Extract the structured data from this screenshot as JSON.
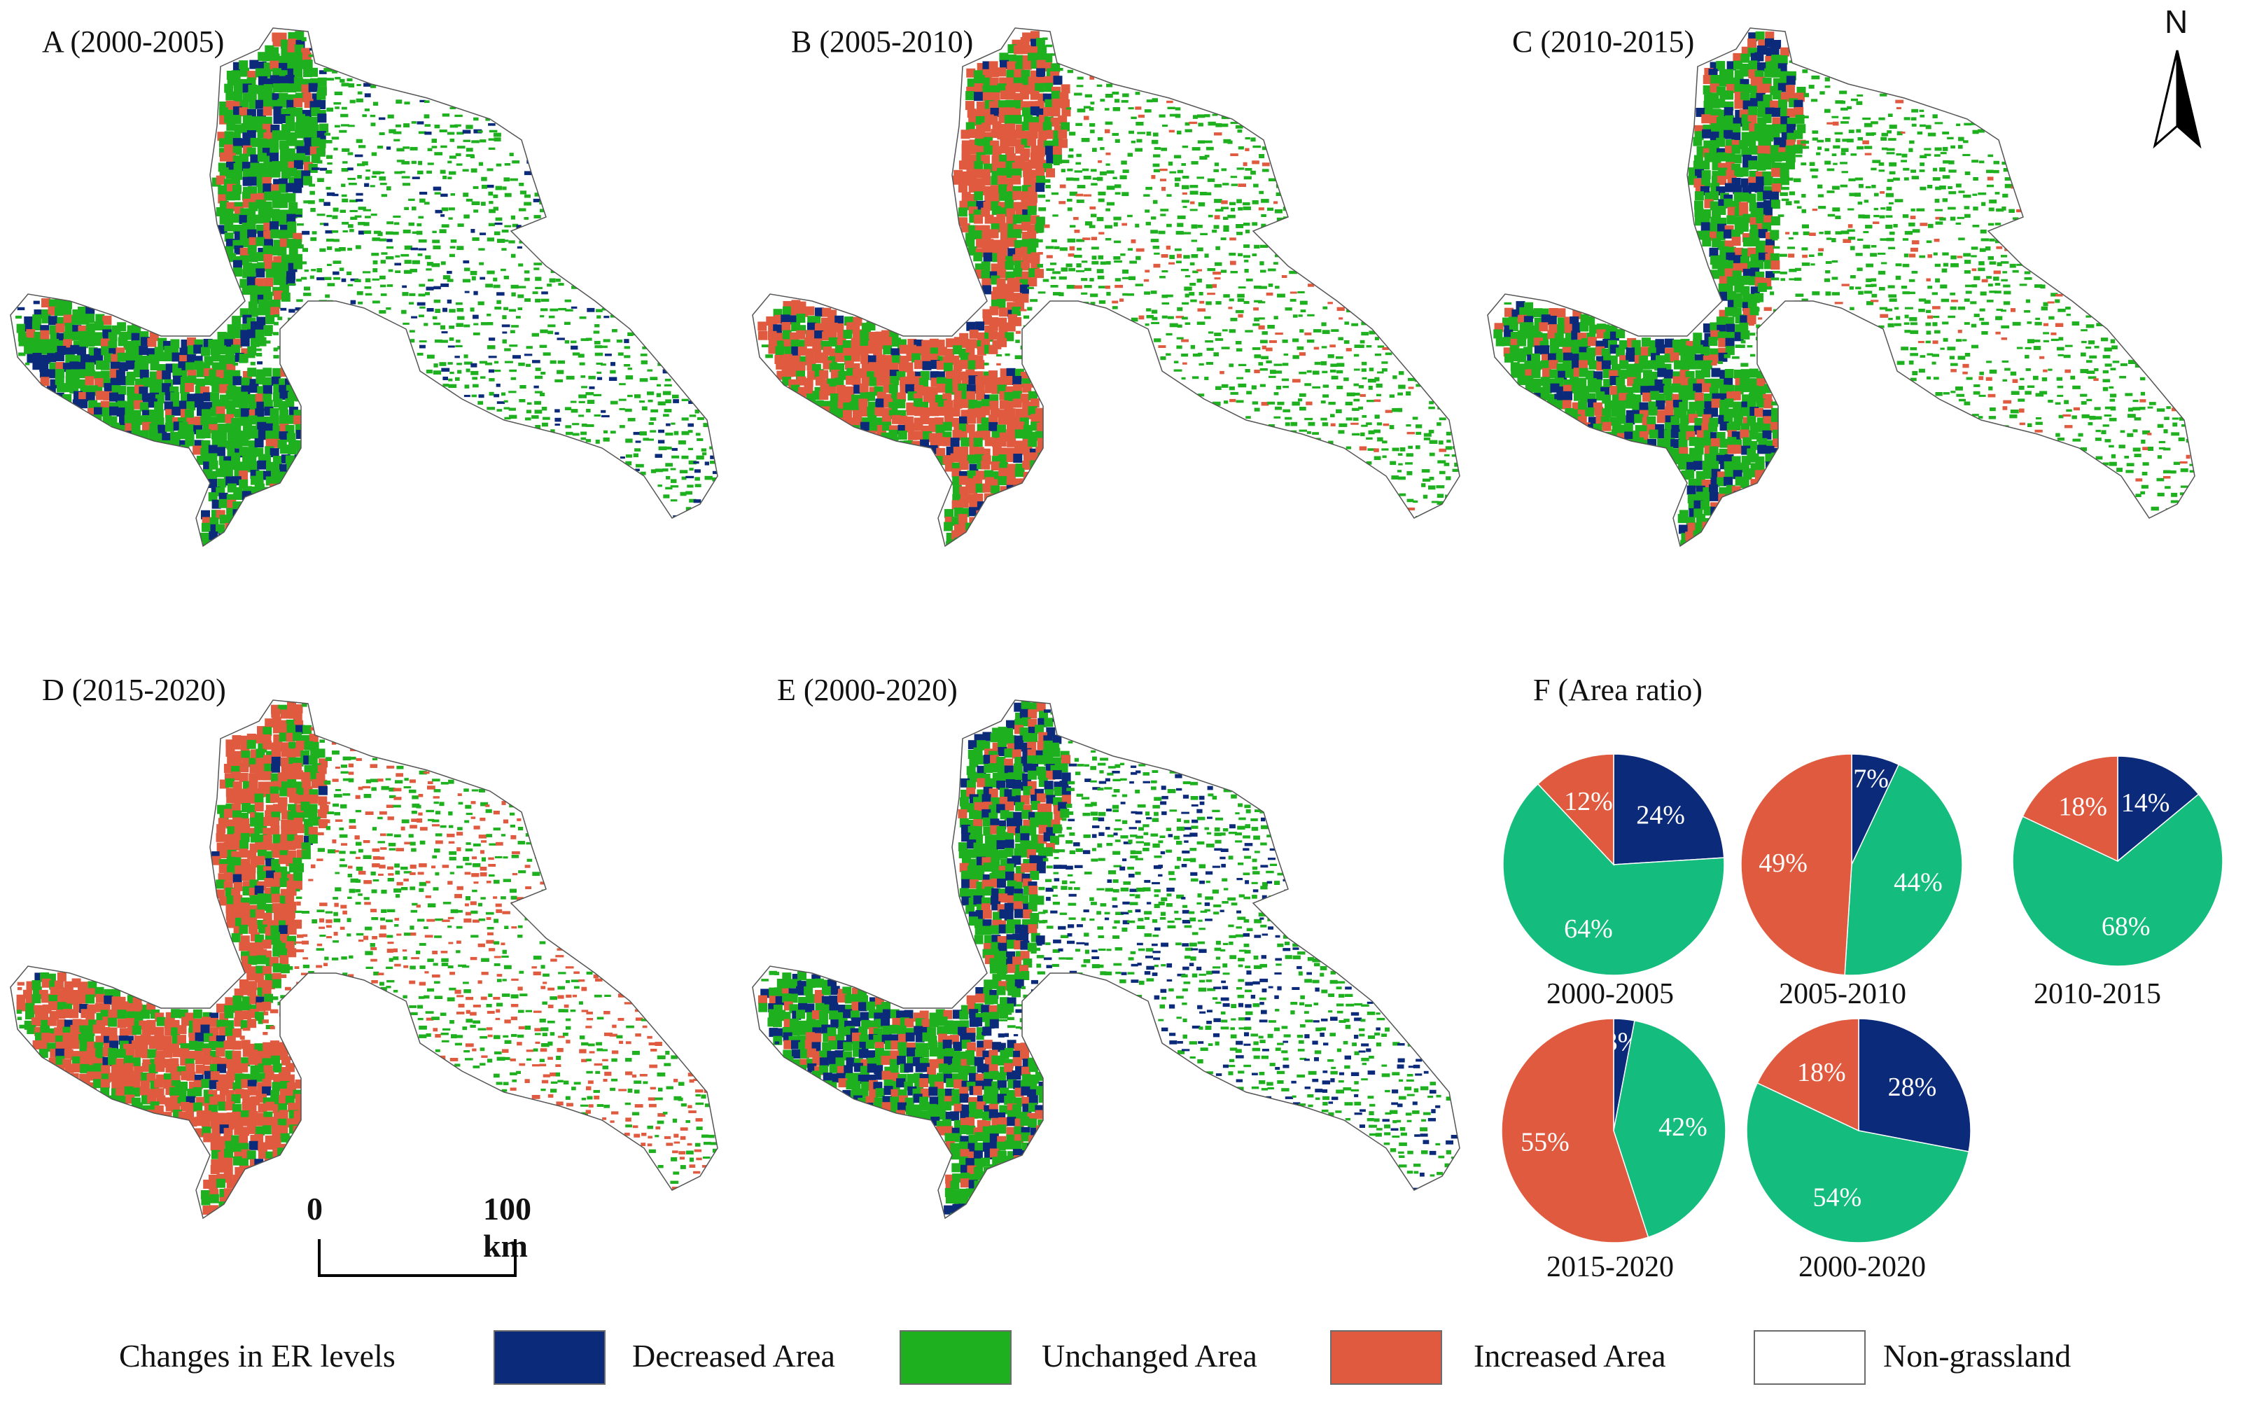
{
  "colors": {
    "decreased": "#0b2a7a",
    "unchanged": "#1fb01f",
    "increased": "#df5a3e",
    "nongrassland": "#ffffff",
    "pie_unchanged": "#14bd7d"
  },
  "maps": [
    {
      "title": "A (2000-2005)",
      "mode": "A"
    },
    {
      "title": "B (2005-2010)",
      "mode": "B"
    },
    {
      "title": "C (2010-2015)",
      "mode": "C"
    },
    {
      "title": "D (2015-2020)",
      "mode": "D"
    },
    {
      "title": "E (2000-2020)",
      "mode": "E"
    }
  ],
  "north_label": "N",
  "scalebar": {
    "start": "0",
    "end": "100 km"
  },
  "chart_data": {
    "type": "pie",
    "title": "F (Area ratio)",
    "pies": [
      {
        "caption": "2000-2005",
        "slices": [
          {
            "label": "24%",
            "value": 24,
            "category": "Decreased Area"
          },
          {
            "label": "64%",
            "value": 64,
            "category": "Unchanged Area"
          },
          {
            "label": "12%",
            "value": 12,
            "category": "Increased Area"
          }
        ]
      },
      {
        "caption": "2005-2010",
        "slices": [
          {
            "label": "7%",
            "value": 7,
            "category": "Decreased Area"
          },
          {
            "label": "44%",
            "value": 44,
            "category": "Unchanged Area"
          },
          {
            "label": "49%",
            "value": 49,
            "category": "Increased Area"
          }
        ]
      },
      {
        "caption": "2010-2015",
        "slices": [
          {
            "label": "14%",
            "value": 14,
            "category": "Decreased Area"
          },
          {
            "label": "68%",
            "value": 68,
            "category": "Unchanged Area"
          },
          {
            "label": "18%",
            "value": 18,
            "category": "Increased Area"
          }
        ]
      },
      {
        "caption": "2015-2020",
        "slices": [
          {
            "label": "3%",
            "value": 3,
            "category": "Decreased Area"
          },
          {
            "label": "42%",
            "value": 42,
            "category": "Unchanged Area"
          },
          {
            "label": "55%",
            "value": 55,
            "category": "Increased Area"
          }
        ]
      },
      {
        "caption": "2000-2020",
        "slices": [
          {
            "label": "28%",
            "value": 28,
            "category": "Decreased Area"
          },
          {
            "label": "54%",
            "value": 54,
            "category": "Unchanged Area"
          },
          {
            "label": "18%",
            "value": 18,
            "category": "Increased Area"
          }
        ]
      }
    ]
  },
  "legend": {
    "title": "Changes in ER levels",
    "items": [
      {
        "label": "Decreased Area",
        "color": "#0b2a7a"
      },
      {
        "label": "Unchanged Area",
        "color": "#1fb01f"
      },
      {
        "label": "Increased Area",
        "color": "#df5a3e"
      },
      {
        "label": "Non-grassland",
        "color": "#ffffff"
      }
    ]
  }
}
